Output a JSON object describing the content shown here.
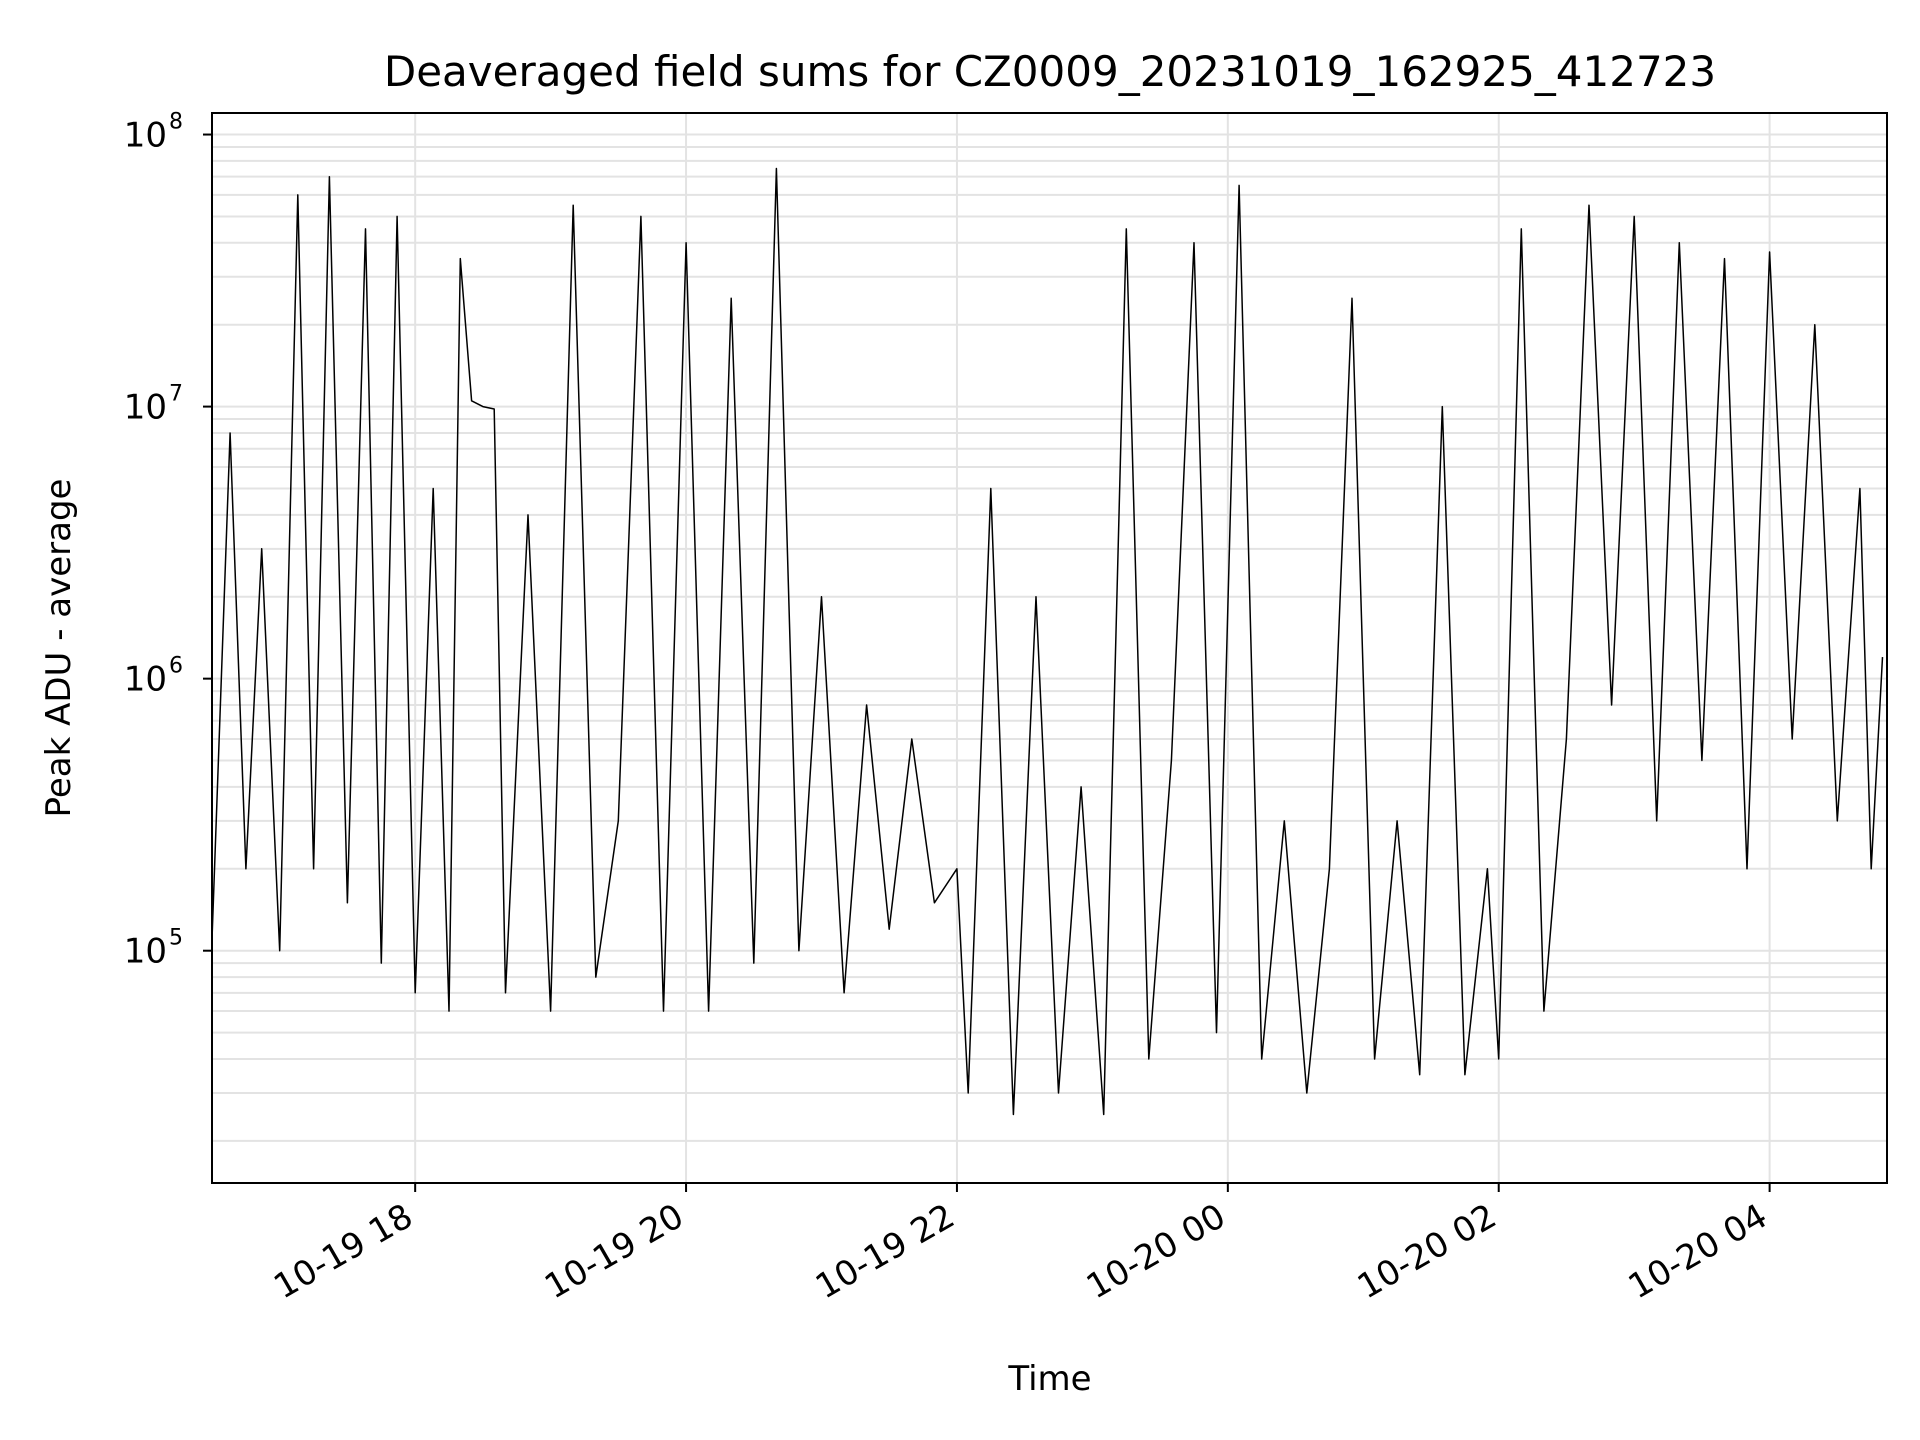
{
  "chart_data": {
    "type": "line",
    "title": "Deaveraged field sums for CZ0009_20231019_162925_412723",
    "xlabel": "Time",
    "ylabel": "Peak ADU - average",
    "yscale": "log",
    "xlim": [
      "2023-10-19 16:30",
      "2023-10-20 04:52"
    ],
    "ylim": [
      14000,
      120000000
    ],
    "grid": {
      "major": true,
      "minor_y": true
    },
    "x_ticks": [
      {
        "t": "2023-10-19 18:00",
        "label": "10-19 18"
      },
      {
        "t": "2023-10-19 20:00",
        "label": "10-19 20"
      },
      {
        "t": "2023-10-19 22:00",
        "label": "10-19 22"
      },
      {
        "t": "2023-10-20 00:00",
        "label": "10-20 00"
      },
      {
        "t": "2023-10-20 02:00",
        "label": "10-20 02"
      },
      {
        "t": "2023-10-20 04:00",
        "label": "10-20 04"
      }
    ],
    "y_ticks": [
      {
        "value": 100000,
        "base": "10",
        "exp": "5"
      },
      {
        "value": 1000000,
        "base": "10",
        "exp": "6"
      },
      {
        "value": 10000000,
        "base": "10",
        "exp": "7"
      },
      {
        "value": 100000000,
        "base": "10",
        "exp": "8"
      }
    ],
    "series": [
      {
        "color": "#000000",
        "x": [
          "2023-10-19 16:30",
          "2023-10-19 16:38",
          "2023-10-19 16:45",
          "2023-10-19 16:52",
          "2023-10-19 17:00",
          "2023-10-19 17:08",
          "2023-10-19 17:15",
          "2023-10-19 17:22",
          "2023-10-19 17:30",
          "2023-10-19 17:38",
          "2023-10-19 17:45",
          "2023-10-19 17:52",
          "2023-10-19 18:00",
          "2023-10-19 18:08",
          "2023-10-19 18:15",
          "2023-10-19 18:20",
          "2023-10-19 18:25",
          "2023-10-19 18:30",
          "2023-10-19 18:35",
          "2023-10-19 18:40",
          "2023-10-19 18:50",
          "2023-10-19 19:00",
          "2023-10-19 19:10",
          "2023-10-19 19:20",
          "2023-10-19 19:30",
          "2023-10-19 19:40",
          "2023-10-19 19:50",
          "2023-10-19 20:00",
          "2023-10-19 20:10",
          "2023-10-19 20:20",
          "2023-10-19 20:30",
          "2023-10-19 20:40",
          "2023-10-19 20:50",
          "2023-10-19 21:00",
          "2023-10-19 21:10",
          "2023-10-19 21:20",
          "2023-10-19 21:30",
          "2023-10-19 21:40",
          "2023-10-19 21:50",
          "2023-10-19 22:00",
          "2023-10-19 22:05",
          "2023-10-19 22:15",
          "2023-10-19 22:25",
          "2023-10-19 22:35",
          "2023-10-19 22:45",
          "2023-10-19 22:55",
          "2023-10-19 23:05",
          "2023-10-19 23:15",
          "2023-10-19 23:25",
          "2023-10-19 23:35",
          "2023-10-19 23:45",
          "2023-10-19 23:55",
          "2023-10-20 00:05",
          "2023-10-20 00:15",
          "2023-10-20 00:25",
          "2023-10-20 00:35",
          "2023-10-20 00:45",
          "2023-10-20 00:55",
          "2023-10-20 01:05",
          "2023-10-20 01:15",
          "2023-10-20 01:25",
          "2023-10-20 01:35",
          "2023-10-20 01:45",
          "2023-10-20 01:55",
          "2023-10-20 02:00",
          "2023-10-20 02:10",
          "2023-10-20 02:20",
          "2023-10-20 02:30",
          "2023-10-20 02:40",
          "2023-10-20 02:50",
          "2023-10-20 03:00",
          "2023-10-20 03:10",
          "2023-10-20 03:20",
          "2023-10-20 03:30",
          "2023-10-20 03:40",
          "2023-10-20 03:50",
          "2023-10-20 04:00",
          "2023-10-20 04:10",
          "2023-10-20 04:20",
          "2023-10-20 04:30",
          "2023-10-20 04:40",
          "2023-10-20 04:45",
          "2023-10-20 04:50"
        ],
        "y": [
          110000,
          8000000,
          200000,
          3000000,
          100000,
          60000000,
          200000,
          70000000,
          150000,
          45000000,
          90000,
          50000000,
          70000,
          5000000,
          60000,
          35000000,
          10500000,
          10000000,
          9800000,
          70000,
          4000000,
          60000,
          55000000,
          80000,
          300000,
          50000000,
          60000,
          40000000,
          60000,
          25000000,
          90000,
          75000000,
          100000,
          2000000,
          70000,
          800000,
          120000,
          600000,
          150000,
          200000,
          30000,
          5000000,
          25000,
          2000000,
          30000,
          400000,
          25000,
          45000000,
          40000,
          500000,
          40000000,
          50000,
          65000000,
          40000,
          300000,
          30000,
          200000,
          25000000,
          40000,
          300000,
          35000,
          10000000,
          35000,
          200000,
          40000,
          45000000,
          60000,
          600000,
          55000000,
          800000,
          50000000,
          300000,
          40000000,
          500000,
          35000000,
          200000,
          37000000,
          600000,
          20000000,
          300000,
          5000000,
          200000,
          1200000
        ]
      }
    ]
  }
}
